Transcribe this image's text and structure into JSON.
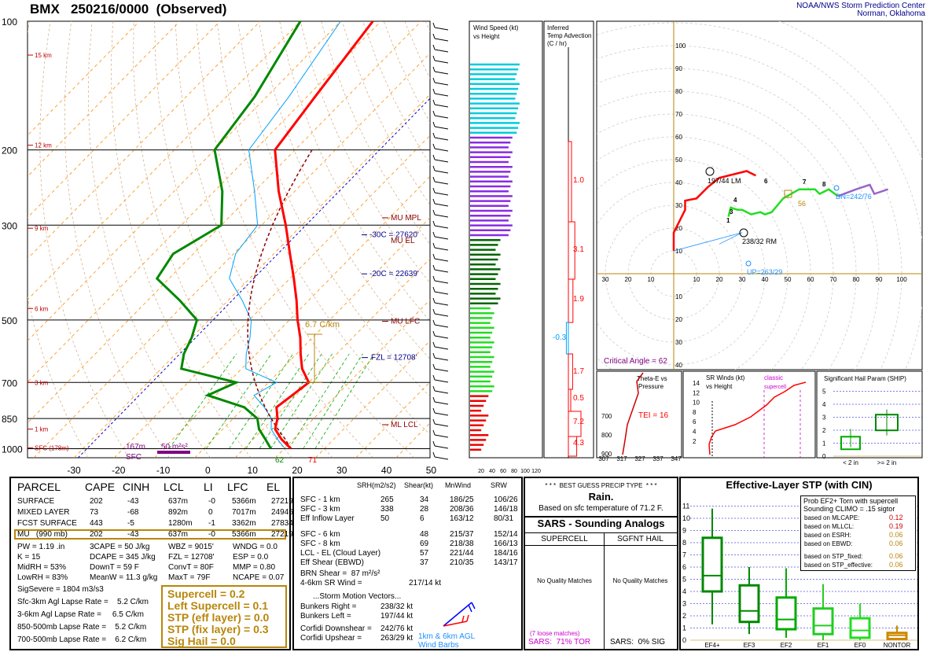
{
  "header": {
    "title": "BMX   250216/0000  (Observed)",
    "org_line1": "NOAA/NWS Storm Prediction Center",
    "org_line2": "Norman, Oklahoma"
  },
  "colors": {
    "temp": "#ff0000",
    "dewpoint": "#008800",
    "virtual": "#8b0000",
    "wetbulb": "#00a0ff",
    "axis": "#000000",
    "isotherm": "#ff8c00",
    "dry_adiabat": "#cc9966",
    "mix": "#00aa00",
    "freezing": "#0000cc",
    "amber": "#b8860b",
    "purple": "#800080"
  },
  "skewt": {
    "pressure_labels": [
      "100",
      "200",
      "300",
      "500",
      "700",
      "850",
      "1000"
    ],
    "height_labels": [
      "15 km",
      "12 km",
      "9 km",
      "6 km",
      "3 km",
      "1 km",
      "SFC (178m)"
    ],
    "temp_ticks": [
      "-30",
      "-20",
      "-10",
      "0",
      "10",
      "20",
      "30",
      "40",
      "50"
    ],
    "annotations": {
      "mu_mpl": "MU  MPL",
      "mu_el": "MU  EL",
      "mu_lfc": "MU  LFC",
      "ml_lcl": "ML  LCL",
      "iso30": "-30C = 27620'",
      "iso20": "-20C = 22639'",
      "fzl": "FZL = 12708'",
      "lapse": "6.7 C/km",
      "srh_depth": "167m",
      "srh_value": "50 m²s²",
      "sfc": "SFC",
      "sfc_td": "62",
      "sfc_t": "71"
    }
  },
  "chart_data": [
    {
      "type": "line",
      "title": "BMX   250216/0000  (Observed)",
      "xlabel": "",
      "ylabel": "",
      "series": [
        {
          "name": "Temperature",
          "points": [
            [
              1000,
              21.7
            ],
            [
              950,
              17
            ],
            [
              900,
              13
            ],
            [
              850,
              11
            ],
            [
              800,
              8
            ],
            [
              750,
              9
            ],
            [
              700,
              10
            ],
            [
              650,
              5
            ],
            [
              600,
              1
            ],
            [
              550,
              -3
            ],
            [
              500,
              -8
            ],
            [
              450,
              -13
            ],
            [
              400,
              -19
            ],
            [
              350,
              -26
            ],
            [
              300,
              -34
            ],
            [
              250,
              -44
            ],
            [
              200,
              -55
            ],
            [
              150,
              -58
            ],
            [
              100,
              -62
            ]
          ]
        },
        {
          "name": "Dewpoint",
          "points": [
            [
              1000,
              16.7
            ],
            [
              950,
              13
            ],
            [
              900,
              9
            ],
            [
              850,
              6
            ],
            [
              800,
              0
            ],
            [
              750,
              -12
            ],
            [
              700,
              -8
            ],
            [
              650,
              -25
            ],
            [
              600,
              -28
            ],
            [
              550,
              -30
            ],
            [
              500,
              -33
            ],
            [
              450,
              -42
            ],
            [
              400,
              -53
            ],
            [
              350,
              -55
            ],
            [
              300,
              -50
            ],
            [
              250,
              -58
            ],
            [
              200,
              -70
            ],
            [
              150,
              -73
            ],
            [
              100,
              -80
            ]
          ]
        }
      ]
    },
    {
      "type": "bar",
      "title": "Wind Speed (kt) vs Height",
      "x_ticks": [
        "20",
        "40",
        "60",
        "80",
        "100",
        "120"
      ]
    },
    {
      "type": "bar",
      "title": "Inferred Temp Advection (C / hr)",
      "values": [
        "1.0",
        "3.1",
        "1.9",
        "-0.3",
        "1.7",
        "0.5",
        "7.2",
        "4.3"
      ]
    },
    {
      "type": "line",
      "title": "Hodograph",
      "labels": {
        "bunkers_left": "197/44 LM",
        "bunkers_right": "238/32 RM",
        "dn": "DN=242/76",
        "up": "UP=263/29",
        "mean": "217/14 kt",
        "storm": "56",
        "critical": "Critical Angle = 62"
      },
      "ring_labels": [
        "10",
        "20",
        "30",
        "40",
        "50",
        "60",
        "70",
        "80",
        "90",
        "100"
      ]
    },
    {
      "type": "line",
      "title": "Theta-E vs Pressure",
      "tei": "TEI = 16",
      "x_ticks": [
        "307",
        "317",
        "327",
        "337",
        "347"
      ],
      "y_ticks": [
        "700",
        "800",
        "900"
      ]
    },
    {
      "type": "line",
      "title": "SR Winds (kt) vs Height",
      "label": "classic supercell",
      "y_ticks": [
        "14",
        "12",
        "10",
        "8",
        "6",
        "4",
        "2"
      ]
    },
    {
      "type": "bar",
      "title": "Significant Hail Param (SHIP)",
      "categories": [
        "< 2 in",
        ">= 2 in"
      ],
      "y_ticks": [
        "5",
        "4",
        "3",
        "2",
        "1",
        "0"
      ]
    },
    {
      "type": "box",
      "title": "Effective-Layer STP (with CIN)",
      "categories": [
        "EF4+",
        "EF3",
        "EF2",
        "EF1",
        "EF0",
        "NONTOR"
      ],
      "y_ticks": [
        "11",
        "10",
        "9",
        "8",
        "7",
        "6",
        "5",
        "4",
        "3",
        "2",
        "1",
        "0"
      ]
    }
  ],
  "parcel": {
    "headers": [
      "PARCEL",
      "CAPE",
      "CINH",
      "LCL",
      "LI",
      "LFC",
      "EL"
    ],
    "rows": [
      [
        "SURFACE",
        "202",
        "-43",
        "637m",
        "-0",
        "5366m",
        "27219'"
      ],
      [
        "MIXED LAYER",
        "73",
        "-68",
        "892m",
        "0",
        "7017m",
        "24946'"
      ],
      [
        "FCST SURFACE",
        "443",
        "-5",
        "1280m",
        "-1",
        "3362m",
        "27834'"
      ],
      [
        "MU   (990 mb)",
        "202",
        "-43",
        "637m",
        "-0",
        "5366m",
        "27219'"
      ]
    ],
    "stats": [
      [
        "PW = 1.19 .in",
        "3CAPE = 50 J/kg",
        "WBZ = 9015'",
        "WNDG = 0.0"
      ],
      [
        "K = 15",
        "DCAPE = 345 J/kg",
        "FZL = 12708'",
        "ESP = 0.0"
      ],
      [
        "MidRH = 53%",
        "DownT = 59 F",
        "ConvT = 80F",
        "MMP = 0.80"
      ],
      [
        "LowRH = 83%",
        "MeanW = 11.3 g/kg",
        "MaxT = 79F",
        "NCAPE = 0.07"
      ]
    ],
    "sigsevere": "SigSevere = 1804 m3/s3",
    "lapse": [
      "Sfc-3km Agl Lapse Rate =    5.2 C/km",
      "3-6km Agl Lapse Rate =     6.5 C/km",
      "850-500mb Lapse Rate =    5.2 C/km",
      "700-500mb Lapse Rate =    6.2 C/km"
    ],
    "params": [
      "Supercell = 0.2",
      "Left Supercell = 0.1",
      "STP (eff layer) = 0.0",
      "STP (fix layer) = 0.3",
      "Sig Hail = 0.0"
    ]
  },
  "kinematics": {
    "headers": [
      "SRH(m2/s2)",
      "Shear(kt)",
      "MnWind",
      "SRW"
    ],
    "rows": [
      [
        "SFC - 1 km",
        "265",
        "34",
        "186/25",
        "106/26"
      ],
      [
        "SFC - 3 km",
        "338",
        "28",
        "208/36",
        "146/18"
      ],
      [
        "Eff Inflow Layer",
        "50",
        "6",
        "163/12",
        "80/31"
      ],
      [
        "SFC - 6 km",
        "48",
        "215/37",
        "152/14"
      ],
      [
        "SFC - 8 km",
        "69",
        "218/38",
        "166/13"
      ],
      [
        "LCL - EL (Cloud Layer)",
        "57",
        "221/44",
        "184/16"
      ],
      [
        "Eff Shear (EBWD)",
        "37",
        "210/35",
        "143/17"
      ]
    ],
    "brn": "BRN Shear =  87 m²/s²",
    "srwind": "4-6km SR Wind =",
    "srwind_val": "217/14 kt",
    "motion_title": "...Storm Motion Vectors...",
    "motion": [
      [
        "Bunkers Right =",
        "238/32 kt"
      ],
      [
        "Bunkers Left =",
        "197/44 kt"
      ],
      [
        "Corfidi Downshear =",
        "242/76 kt"
      ],
      [
        "Corfidi Upshear =",
        "263/29 kt"
      ]
    ],
    "barb_label1": "1km & 6km AGL",
    "barb_label2": "Wind Barbs"
  },
  "precip": {
    "title": "* * *  BEST GUESS PRECIP TYPE  * * *",
    "value": "Rain.",
    "sub": "Based on sfc temperature of 71.2 F."
  },
  "sars": {
    "title": "SARS - Sounding Analogs",
    "col1": "SUPERCELL",
    "col2": "SGFNT HAIL",
    "nomatch1": "No Quality Matches",
    "nomatch2": "No Quality Matches",
    "loose": "(7 loose matches)",
    "tor": "SARS:  71% TOR",
    "sig": "SARS:  0% SIG"
  },
  "stp": {
    "title": "Effective-Layer STP (with CIN)",
    "prob_title1": "Prob EF2+ Torn with supercell",
    "prob_title2": "Sounding CLIMO = .15 sigtor",
    "probs": [
      [
        "based on MLCAPE:",
        "0.12"
      ],
      [
        "based on MLLCL:",
        "0.19"
      ],
      [
        "based on ESRH:",
        "0.06"
      ],
      [
        "based on EBWD:",
        "0.06"
      ],
      [
        "based on STP_fixed:",
        "0.06"
      ],
      [
        "based on STP_effective:",
        "0.06"
      ]
    ]
  }
}
